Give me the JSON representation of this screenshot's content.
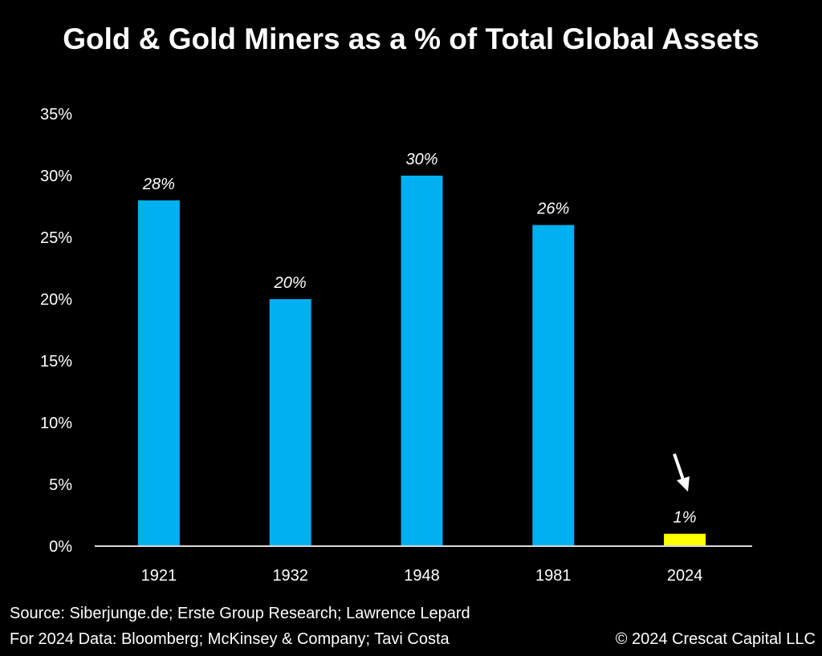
{
  "chart_data": {
    "type": "bar",
    "title": "Gold & Gold Miners as a % of Total Global Assets",
    "categories": [
      "1921",
      "1932",
      "1948",
      "1981",
      "2024"
    ],
    "values": [
      28,
      20,
      30,
      26,
      1
    ],
    "data_labels": [
      "28%",
      "20%",
      "30%",
      "26%",
      "1%"
    ],
    "bar_colors": [
      "#00b0f0",
      "#00b0f0",
      "#00b0f0",
      "#00b0f0",
      "#ffff00"
    ],
    "ylim": [
      0,
      35
    ],
    "yticks": [
      0,
      5,
      10,
      15,
      20,
      25,
      30,
      35
    ],
    "ytick_labels": [
      "0%",
      "5%",
      "10%",
      "15%",
      "20%",
      "25%",
      "30%",
      "35%"
    ],
    "xlabel": "",
    "ylabel": "",
    "grid": false,
    "annotation": "arrow pointing to 2024 bar"
  },
  "footer": {
    "source": "Source: Siberjunge.de; Erste Group Research; Lawrence Lepard",
    "data_2024": "For 2024 Data: Bloomberg; McKinsey & Company; Tavi Costa",
    "copyright": "© 2024 Crescat Capital LLC"
  },
  "colors": {
    "background": "#000000",
    "bar": "#00b0f0",
    "highlight": "#ffff00"
  }
}
